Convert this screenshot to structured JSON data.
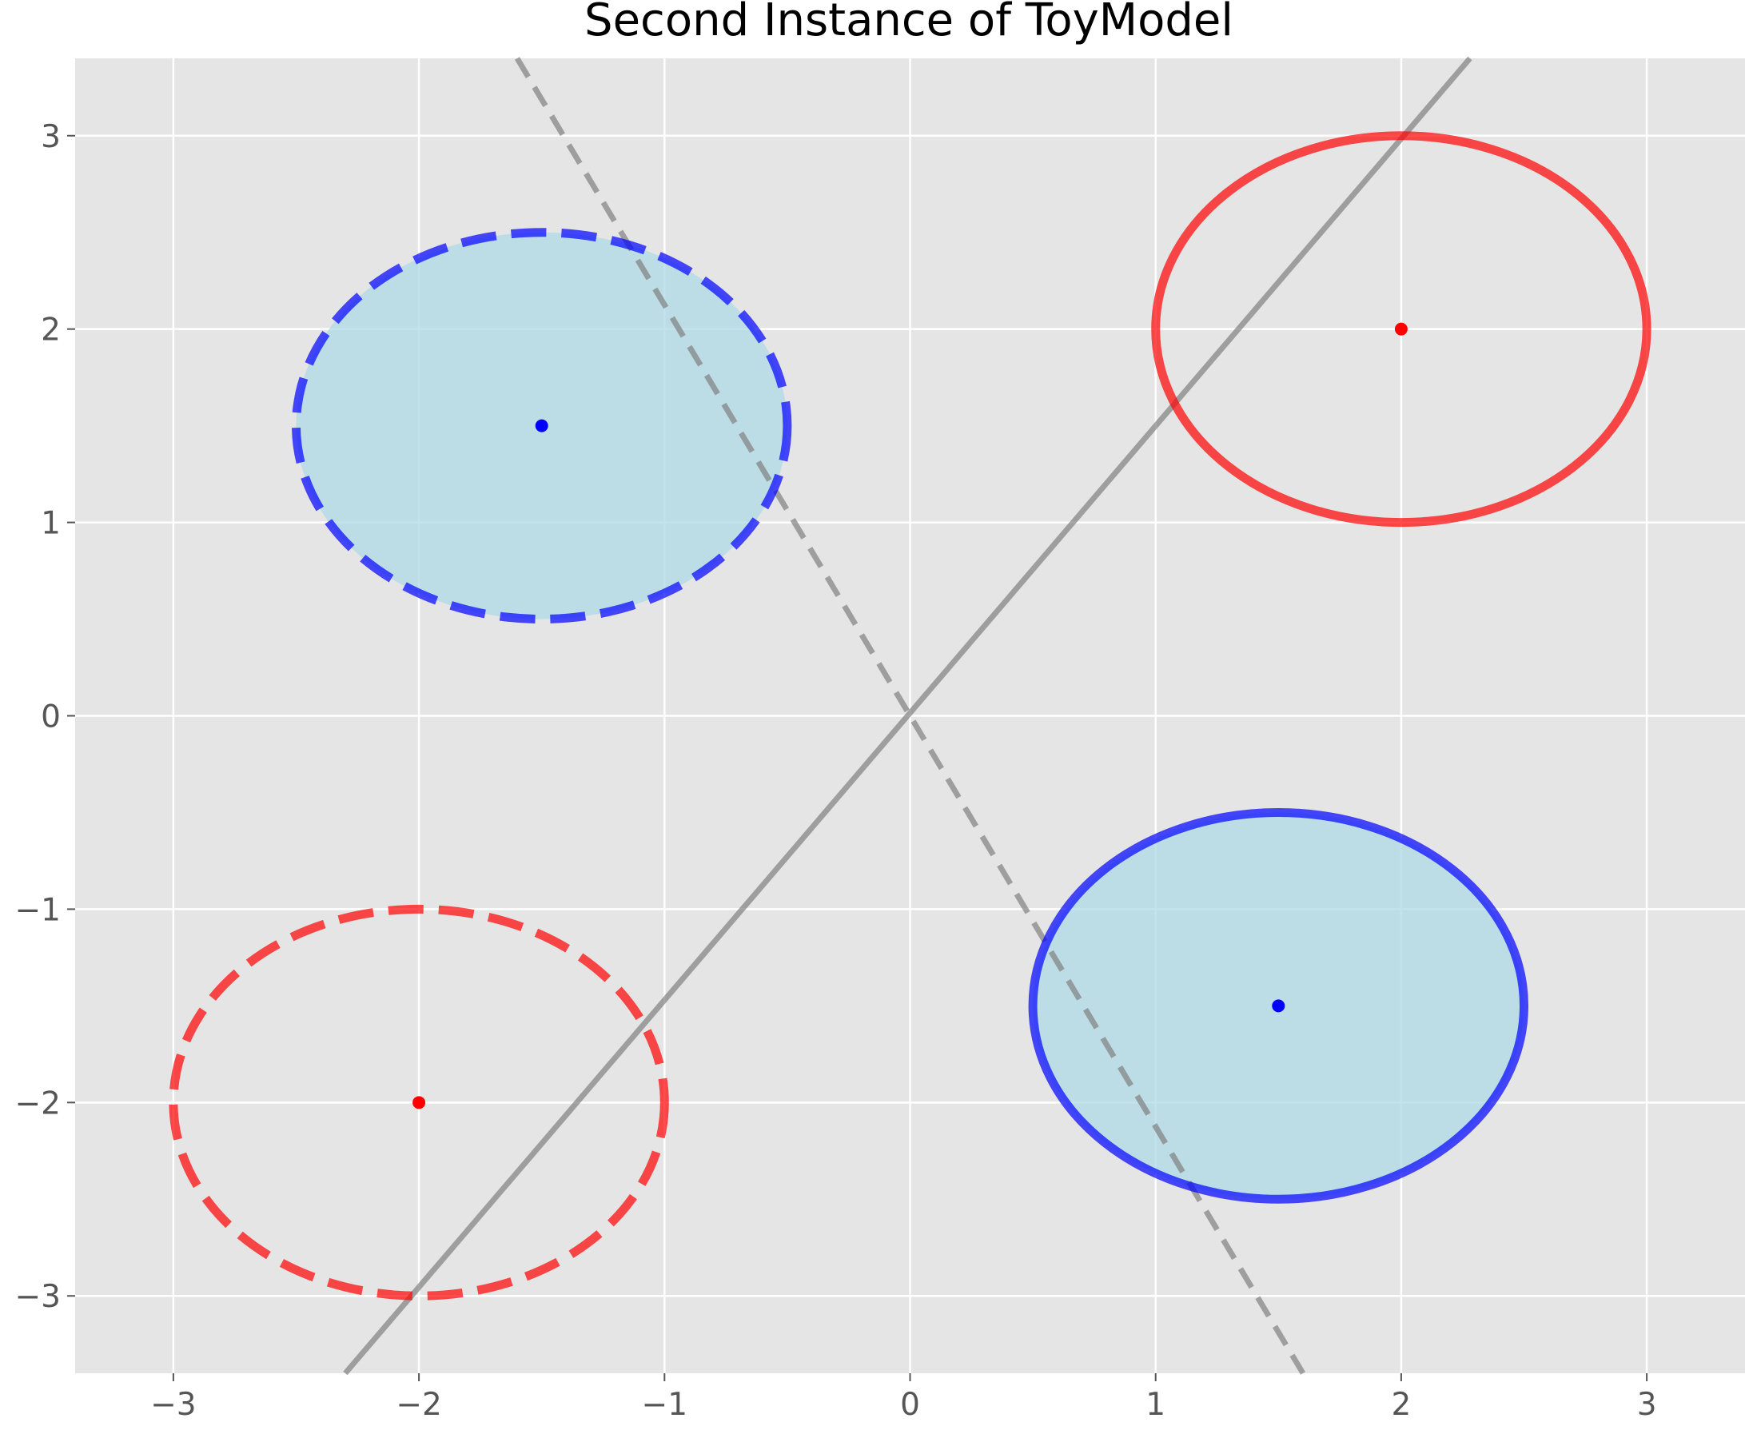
{
  "chart_data": {
    "type": "scatter",
    "title": "Second Instance of ToyModel",
    "xlabel": "",
    "ylabel": "",
    "xlim": [
      -3.4,
      3.4
    ],
    "ylim": [
      -3.4,
      3.4
    ],
    "xticks": [
      -3,
      -2,
      -1,
      0,
      1,
      2,
      3
    ],
    "yticks": [
      -3,
      -2,
      -1,
      0,
      1,
      2,
      3
    ],
    "xtick_labels": [
      "−3",
      "−2",
      "−1",
      "0",
      "1",
      "2",
      "3"
    ],
    "ytick_labels": [
      "−3",
      "−2",
      "−1",
      "0",
      "1",
      "2",
      "3"
    ],
    "grid": true,
    "background": "#e5e5e5",
    "ellipses": [
      {
        "name": "blue-dashed-filled",
        "cx": -1.5,
        "cy": 1.5,
        "rx": 1.0,
        "ry": 1.0,
        "edge": "#0000ff",
        "fill": "#add8e6",
        "dashed": true
      },
      {
        "name": "red-solid",
        "cx": 2.0,
        "cy": 2.0,
        "rx": 1.0,
        "ry": 1.0,
        "edge": "#ff0000",
        "fill": null,
        "dashed": false
      },
      {
        "name": "red-dashed",
        "cx": -2.0,
        "cy": -2.0,
        "rx": 1.0,
        "ry": 1.0,
        "edge": "#ff0000",
        "fill": null,
        "dashed": true
      },
      {
        "name": "blue-solid-filled",
        "cx": 1.5,
        "cy": -1.5,
        "rx": 1.0,
        "ry": 1.0,
        "edge": "#0000ff",
        "fill": "#add8e6",
        "dashed": false
      }
    ],
    "points": [
      {
        "x": -1.5,
        "y": 1.5,
        "color": "#0000ff"
      },
      {
        "x": 2.0,
        "y": 2.0,
        "color": "#ff0000"
      },
      {
        "x": -2.0,
        "y": -2.0,
        "color": "#ff0000"
      },
      {
        "x": 1.5,
        "y": -1.5,
        "color": "#0000ff"
      }
    ],
    "lines": [
      {
        "name": "solid-boundary",
        "x1": -2.3,
        "y1": -3.4,
        "x2": 2.28,
        "y2": 3.4,
        "color": "#808080",
        "dashed": false
      },
      {
        "name": "dashed-boundary",
        "x1": -1.6,
        "y1": 3.4,
        "x2": 1.6,
        "y2": -3.4,
        "color": "#808080",
        "dashed": true
      }
    ]
  }
}
